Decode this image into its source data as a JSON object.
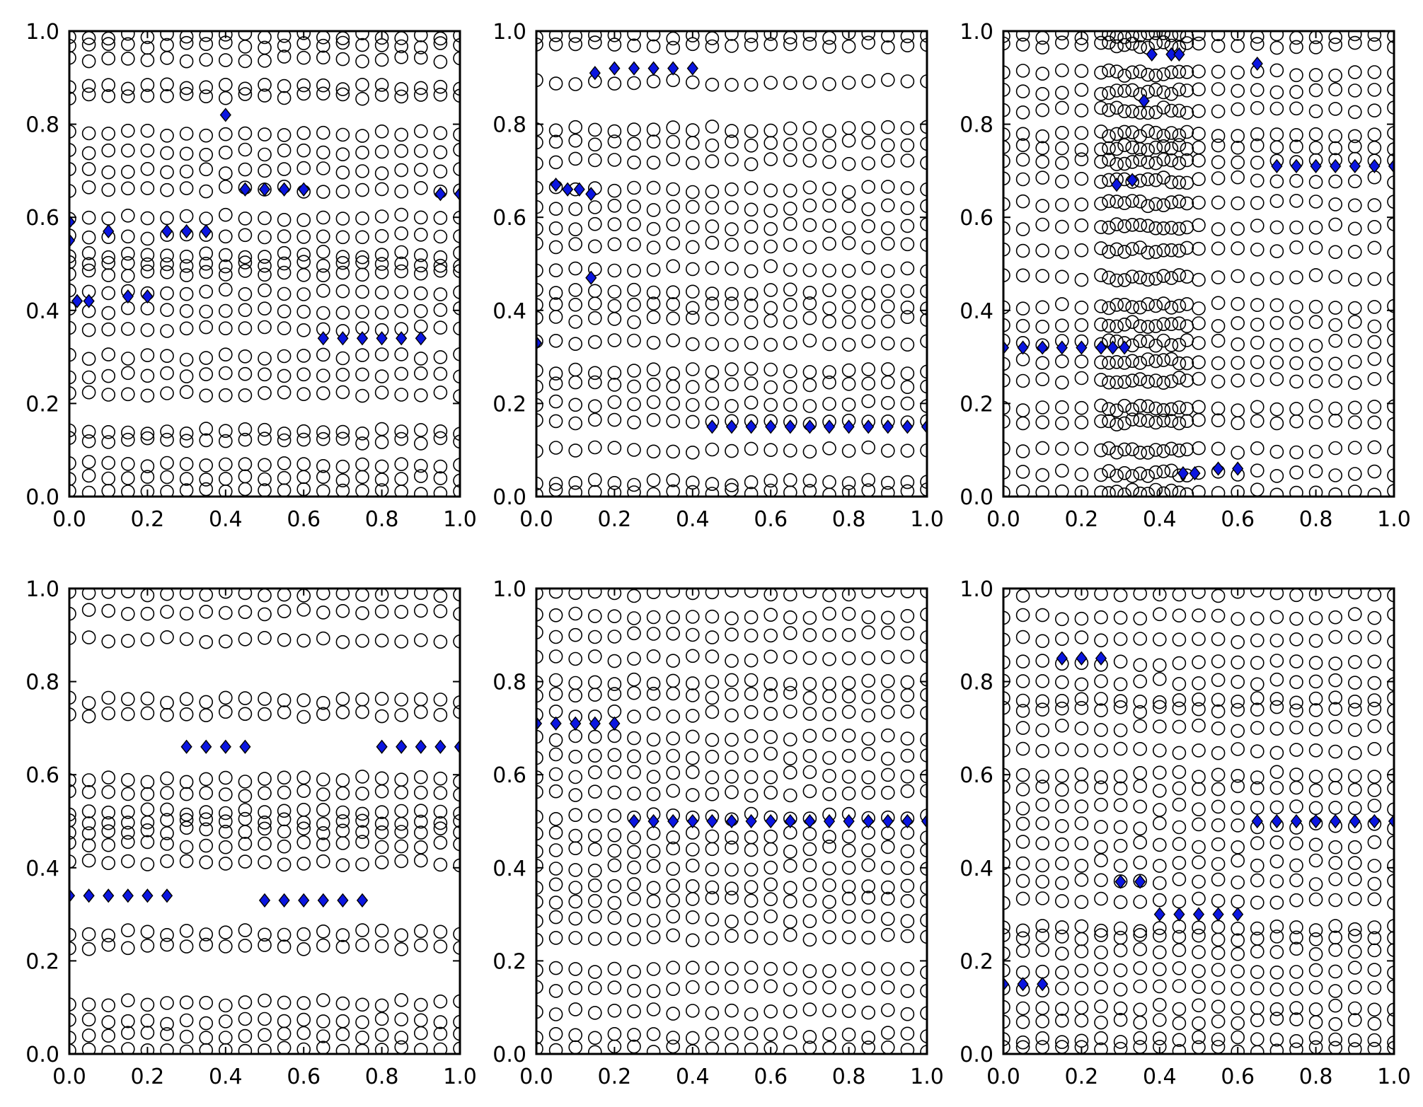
{
  "figure": {
    "grid_rows": 2,
    "grid_cols": 3
  },
  "colors": {
    "circle_edge": "#000000",
    "diamond_fill": "#0b16e0",
    "background": "#ffffff"
  },
  "chart_data": [
    {
      "type": "scatter",
      "title": "",
      "xlabel": "",
      "ylabel": "",
      "xlim": [
        0,
        1
      ],
      "ylim": [
        0,
        1
      ],
      "grid": false,
      "xticks": [
        "0.0",
        "0.2",
        "0.4",
        "0.6",
        "0.8",
        "1.0"
      ],
      "yticks": [
        "0.0",
        "0.2",
        "0.4",
        "0.6",
        "0.8",
        "1.0"
      ],
      "circle_columns": [
        0.0,
        0.05,
        0.1,
        0.15,
        0.2,
        0.25,
        0.3,
        0.35,
        0.4,
        0.45,
        0.5,
        0.55,
        0.6,
        0.65,
        0.7,
        0.75,
        0.8,
        0.85,
        0.9,
        0.95,
        1.0
      ],
      "circle_bands": [
        0.01,
        0.04,
        0.07,
        0.12,
        0.14,
        0.22,
        0.26,
        0.3,
        0.36,
        0.4,
        0.44,
        0.48,
        0.5,
        0.52,
        0.56,
        0.6,
        0.66,
        0.7,
        0.74,
        0.78,
        0.86,
        0.88,
        0.94,
        0.97,
        0.99
      ],
      "highlight_points": [
        [
          0.0,
          0.59
        ],
        [
          0.0,
          0.55
        ],
        [
          0.02,
          0.42
        ],
        [
          0.05,
          0.42
        ],
        [
          0.1,
          0.57
        ],
        [
          0.15,
          0.43
        ],
        [
          0.2,
          0.43
        ],
        [
          0.25,
          0.57
        ],
        [
          0.3,
          0.57
        ],
        [
          0.35,
          0.57
        ],
        [
          0.4,
          0.82
        ],
        [
          0.45,
          0.66
        ],
        [
          0.5,
          0.66
        ],
        [
          0.55,
          0.66
        ],
        [
          0.6,
          0.66
        ],
        [
          0.65,
          0.34
        ],
        [
          0.7,
          0.34
        ],
        [
          0.75,
          0.34
        ],
        [
          0.8,
          0.34
        ],
        [
          0.85,
          0.34
        ],
        [
          0.9,
          0.34
        ],
        [
          0.95,
          0.65
        ],
        [
          1.0,
          0.65
        ]
      ]
    },
    {
      "type": "scatter",
      "title": "",
      "xlabel": "",
      "ylabel": "",
      "xlim": [
        0,
        1
      ],
      "ylim": [
        0,
        1
      ],
      "grid": false,
      "xticks": [
        "0.0",
        "0.2",
        "0.4",
        "0.6",
        "0.8",
        "1.0"
      ],
      "yticks": [
        "0.0",
        "0.2",
        "0.4",
        "0.6",
        "0.8",
        "1.0"
      ],
      "circle_columns": [
        0.0,
        0.05,
        0.1,
        0.15,
        0.2,
        0.25,
        0.3,
        0.35,
        0.4,
        0.45,
        0.5,
        0.55,
        0.6,
        0.65,
        0.7,
        0.75,
        0.8,
        0.85,
        0.9,
        0.95,
        1.0
      ],
      "circle_bands": [
        0.01,
        0.03,
        0.1,
        0.16,
        0.2,
        0.24,
        0.27,
        0.33,
        0.38,
        0.41,
        0.44,
        0.49,
        0.54,
        0.58,
        0.62,
        0.66,
        0.72,
        0.76,
        0.79,
        0.89,
        0.97,
        0.99
      ],
      "highlight_points": [
        [
          0.0,
          0.33
        ],
        [
          0.05,
          0.67
        ],
        [
          0.08,
          0.66
        ],
        [
          0.11,
          0.66
        ],
        [
          0.14,
          0.65
        ],
        [
          0.14,
          0.47
        ],
        [
          0.15,
          0.91
        ],
        [
          0.2,
          0.92
        ],
        [
          0.25,
          0.92
        ],
        [
          0.3,
          0.92
        ],
        [
          0.35,
          0.92
        ],
        [
          0.4,
          0.92
        ],
        [
          0.45,
          0.15
        ],
        [
          0.5,
          0.15
        ],
        [
          0.55,
          0.15
        ],
        [
          0.6,
          0.15
        ],
        [
          0.65,
          0.15
        ],
        [
          0.7,
          0.15
        ],
        [
          0.75,
          0.15
        ],
        [
          0.8,
          0.15
        ],
        [
          0.85,
          0.15
        ],
        [
          0.9,
          0.15
        ],
        [
          0.95,
          0.15
        ],
        [
          1.0,
          0.15
        ]
      ]
    },
    {
      "type": "scatter",
      "title": "",
      "xlabel": "",
      "ylabel": "",
      "xlim": [
        0,
        1
      ],
      "ylim": [
        0,
        1
      ],
      "grid": false,
      "xticks": [
        "0.0",
        "0.2",
        "0.4",
        "0.6",
        "0.8",
        "1.0"
      ],
      "yticks": [
        "0.0",
        "0.2",
        "0.4",
        "0.6",
        "0.8",
        "1.0"
      ],
      "circle_columns": [
        0.0,
        0.05,
        0.1,
        0.15,
        0.2,
        0.25,
        0.27,
        0.29,
        0.31,
        0.33,
        0.35,
        0.37,
        0.39,
        0.41,
        0.43,
        0.45,
        0.47,
        0.5,
        0.55,
        0.6,
        0.65,
        0.7,
        0.75,
        0.8,
        0.85,
        0.9,
        0.95,
        1.0
      ],
      "circle_bands": [
        0.01,
        0.05,
        0.1,
        0.16,
        0.19,
        0.25,
        0.29,
        0.33,
        0.37,
        0.41,
        0.47,
        0.53,
        0.58,
        0.63,
        0.68,
        0.72,
        0.75,
        0.78,
        0.83,
        0.87,
        0.91,
        0.97,
        0.99
      ],
      "highlight_points": [
        [
          0.0,
          0.32
        ],
        [
          0.05,
          0.32
        ],
        [
          0.1,
          0.32
        ],
        [
          0.15,
          0.32
        ],
        [
          0.2,
          0.32
        ],
        [
          0.25,
          0.32
        ],
        [
          0.28,
          0.32
        ],
        [
          0.31,
          0.32
        ],
        [
          0.29,
          0.67
        ],
        [
          0.33,
          0.68
        ],
        [
          0.36,
          0.85
        ],
        [
          0.38,
          0.95
        ],
        [
          0.43,
          0.95
        ],
        [
          0.45,
          0.95
        ],
        [
          0.46,
          0.05
        ],
        [
          0.49,
          0.05
        ],
        [
          0.55,
          0.06
        ],
        [
          0.6,
          0.06
        ],
        [
          0.65,
          0.93
        ],
        [
          0.7,
          0.71
        ],
        [
          0.75,
          0.71
        ],
        [
          0.8,
          0.71
        ],
        [
          0.85,
          0.71
        ],
        [
          0.9,
          0.71
        ],
        [
          0.95,
          0.71
        ],
        [
          1.0,
          0.71
        ]
      ]
    },
    {
      "type": "scatter",
      "title": "",
      "xlabel": "",
      "ylabel": "",
      "xlim": [
        0,
        1
      ],
      "ylim": [
        0,
        1
      ],
      "grid": false,
      "xticks": [
        "0.0",
        "0.2",
        "0.4",
        "0.6",
        "0.8",
        "1.0"
      ],
      "yticks": [
        "0.0",
        "0.2",
        "0.4",
        "0.6",
        "0.8",
        "1.0"
      ],
      "circle_columns": [
        0.0,
        0.05,
        0.1,
        0.15,
        0.2,
        0.25,
        0.3,
        0.35,
        0.4,
        0.45,
        0.5,
        0.55,
        0.6,
        0.65,
        0.7,
        0.75,
        0.8,
        0.85,
        0.9,
        0.95,
        1.0
      ],
      "circle_bands": [
        0.01,
        0.04,
        0.07,
        0.11,
        0.23,
        0.26,
        0.41,
        0.45,
        0.48,
        0.5,
        0.52,
        0.56,
        0.59,
        0.73,
        0.76,
        0.89,
        0.95,
        0.99
      ],
      "highlight_points": [
        [
          0.0,
          0.34
        ],
        [
          0.05,
          0.34
        ],
        [
          0.1,
          0.34
        ],
        [
          0.15,
          0.34
        ],
        [
          0.2,
          0.34
        ],
        [
          0.25,
          0.34
        ],
        [
          0.3,
          0.66
        ],
        [
          0.35,
          0.66
        ],
        [
          0.4,
          0.66
        ],
        [
          0.45,
          0.66
        ],
        [
          0.5,
          0.33
        ],
        [
          0.55,
          0.33
        ],
        [
          0.6,
          0.33
        ],
        [
          0.65,
          0.33
        ],
        [
          0.7,
          0.33
        ],
        [
          0.75,
          0.33
        ],
        [
          0.8,
          0.66
        ],
        [
          0.85,
          0.66
        ],
        [
          0.9,
          0.66
        ],
        [
          0.95,
          0.66
        ],
        [
          1.0,
          0.66
        ]
      ]
    },
    {
      "type": "scatter",
      "title": "",
      "xlabel": "",
      "ylabel": "",
      "xlim": [
        0,
        1
      ],
      "ylim": [
        0,
        1
      ],
      "grid": false,
      "xticks": [
        "0.0",
        "0.2",
        "0.4",
        "0.6",
        "0.8",
        "1.0"
      ],
      "yticks": [
        "0.0",
        "0.2",
        "0.4",
        "0.6",
        "0.8",
        "1.0"
      ],
      "circle_columns": [
        0.0,
        0.05,
        0.1,
        0.15,
        0.2,
        0.25,
        0.3,
        0.35,
        0.4,
        0.45,
        0.5,
        0.55,
        0.6,
        0.65,
        0.7,
        0.75,
        0.8,
        0.85,
        0.9,
        0.95,
        1.0
      ],
      "circle_bands": [
        0.01,
        0.04,
        0.09,
        0.14,
        0.18,
        0.25,
        0.29,
        0.33,
        0.36,
        0.4,
        0.44,
        0.47,
        0.51,
        0.56,
        0.6,
        0.64,
        0.68,
        0.73,
        0.77,
        0.8,
        0.85,
        0.9,
        0.94,
        0.99
      ],
      "highlight_points": [
        [
          0.0,
          0.71
        ],
        [
          0.05,
          0.71
        ],
        [
          0.1,
          0.71
        ],
        [
          0.15,
          0.71
        ],
        [
          0.2,
          0.71
        ],
        [
          0.25,
          0.5
        ],
        [
          0.3,
          0.5
        ],
        [
          0.35,
          0.5
        ],
        [
          0.4,
          0.5
        ],
        [
          0.45,
          0.5
        ],
        [
          0.5,
          0.5
        ],
        [
          0.55,
          0.5
        ],
        [
          0.6,
          0.5
        ],
        [
          0.65,
          0.5
        ],
        [
          0.7,
          0.5
        ],
        [
          0.75,
          0.5
        ],
        [
          0.8,
          0.5
        ],
        [
          0.85,
          0.5
        ],
        [
          0.9,
          0.5
        ],
        [
          0.95,
          0.5
        ],
        [
          1.0,
          0.5
        ]
      ]
    },
    {
      "type": "scatter",
      "title": "",
      "xlabel": "",
      "ylabel": "",
      "xlim": [
        0,
        1
      ],
      "ylim": [
        0,
        1
      ],
      "grid": false,
      "xticks": [
        "0.0",
        "0.2",
        "0.4",
        "0.6",
        "0.8",
        "1.0"
      ],
      "yticks": [
        "0.0",
        "0.2",
        "0.4",
        "0.6",
        "0.8",
        "1.0"
      ],
      "circle_columns": [
        0.0,
        0.05,
        0.1,
        0.15,
        0.2,
        0.25,
        0.3,
        0.35,
        0.4,
        0.45,
        0.5,
        0.55,
        0.6,
        0.65,
        0.7,
        0.75,
        0.8,
        0.85,
        0.9,
        0.95,
        1.0
      ],
      "circle_bands": [
        0.01,
        0.03,
        0.07,
        0.1,
        0.14,
        0.18,
        0.22,
        0.25,
        0.27,
        0.33,
        0.37,
        0.41,
        0.45,
        0.49,
        0.53,
        0.57,
        0.6,
        0.65,
        0.7,
        0.74,
        0.76,
        0.8,
        0.84,
        0.89,
        0.94,
        0.99
      ],
      "highlight_points": [
        [
          0.0,
          0.15
        ],
        [
          0.05,
          0.15
        ],
        [
          0.1,
          0.15
        ],
        [
          0.15,
          0.85
        ],
        [
          0.2,
          0.85
        ],
        [
          0.25,
          0.85
        ],
        [
          0.3,
          0.37
        ],
        [
          0.35,
          0.37
        ],
        [
          0.4,
          0.3
        ],
        [
          0.45,
          0.3
        ],
        [
          0.5,
          0.3
        ],
        [
          0.55,
          0.3
        ],
        [
          0.6,
          0.3
        ],
        [
          0.65,
          0.5
        ],
        [
          0.7,
          0.5
        ],
        [
          0.75,
          0.5
        ],
        [
          0.8,
          0.5
        ],
        [
          0.85,
          0.5
        ],
        [
          0.9,
          0.5
        ],
        [
          0.95,
          0.5
        ],
        [
          1.0,
          0.5
        ]
      ]
    }
  ]
}
